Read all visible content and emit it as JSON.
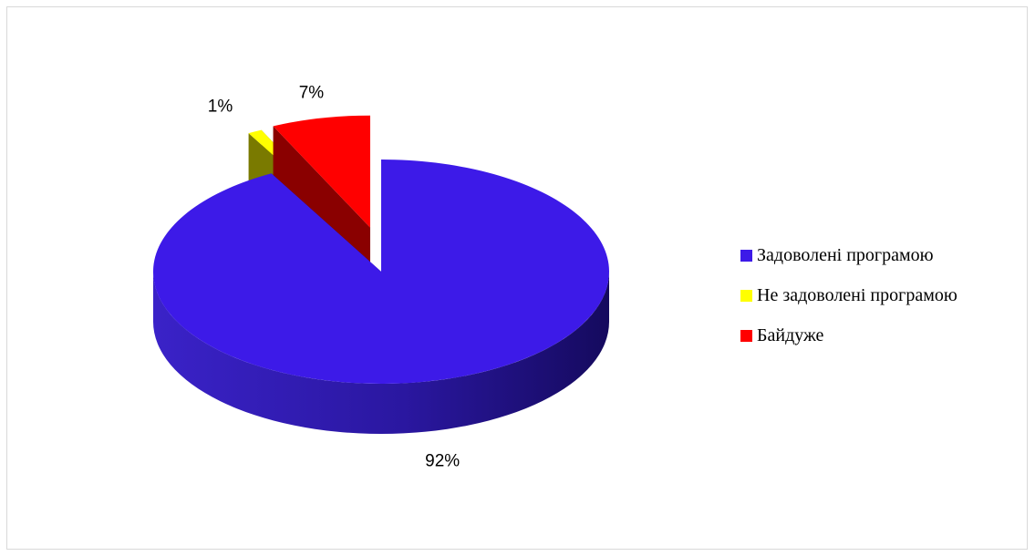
{
  "chart_data": {
    "type": "pie",
    "style": "3d-exploded",
    "title": "",
    "legend_position": "right",
    "categories": [
      "Задоволені програмою",
      "Не задоволені програмою",
      "Байдуже"
    ],
    "values": [
      92,
      1,
      7
    ],
    "labels": [
      "92%",
      "1%",
      "7%"
    ],
    "colors": [
      "#3d1ae8",
      "#ffff00",
      "#ff0000"
    ]
  }
}
